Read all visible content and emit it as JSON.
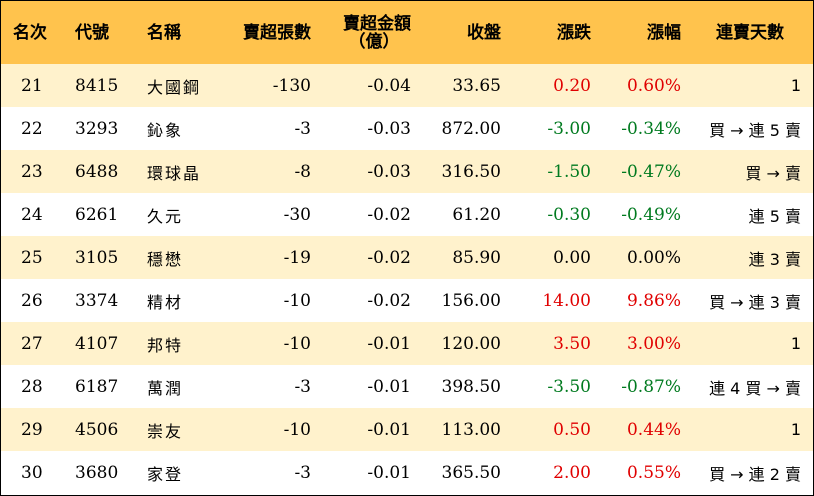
{
  "colors": {
    "header_bg": "#ffc34d",
    "alt_row_bg": "#fff2cc",
    "up": "#e00000",
    "down": "#007a1f"
  },
  "header": {
    "rank": "名次",
    "code": "代號",
    "name": "名稱",
    "net_sell_lots": "賣超張數",
    "net_sell_amount_1": "賣超金額",
    "net_sell_amount_2": "（億）",
    "close": "收盤",
    "change": "漲跌",
    "change_pct": "漲幅",
    "streak": "連賣天數"
  },
  "rows": [
    {
      "rank": "21",
      "code": "8415",
      "name": "大國鋼",
      "lots": "-130",
      "amount": "-0.04",
      "close": "33.65",
      "change": "0.20",
      "pct": "0.60%",
      "dir": "up",
      "streak": "1"
    },
    {
      "rank": "22",
      "code": "3293",
      "name": "鈊象",
      "lots": "-3",
      "amount": "-0.03",
      "close": "872.00",
      "change": "-3.00",
      "pct": "-0.34%",
      "dir": "down",
      "streak": "買 → 連 5 賣"
    },
    {
      "rank": "23",
      "code": "6488",
      "name": "環球晶",
      "lots": "-8",
      "amount": "-0.03",
      "close": "316.50",
      "change": "-1.50",
      "pct": "-0.47%",
      "dir": "down",
      "streak": "買 → 賣"
    },
    {
      "rank": "24",
      "code": "6261",
      "name": "久元",
      "lots": "-30",
      "amount": "-0.02",
      "close": "61.20",
      "change": "-0.30",
      "pct": "-0.49%",
      "dir": "down",
      "streak": "連 5 賣"
    },
    {
      "rank": "25",
      "code": "3105",
      "name": "穩懋",
      "lots": "-19",
      "amount": "-0.02",
      "close": "85.90",
      "change": "0.00",
      "pct": "0.00%",
      "dir": "flat",
      "streak": "連 3 賣"
    },
    {
      "rank": "26",
      "code": "3374",
      "name": "精材",
      "lots": "-10",
      "amount": "-0.02",
      "close": "156.00",
      "change": "14.00",
      "pct": "9.86%",
      "dir": "up",
      "streak": "買 → 連 3 賣"
    },
    {
      "rank": "27",
      "code": "4107",
      "name": "邦特",
      "lots": "-10",
      "amount": "-0.01",
      "close": "120.00",
      "change": "3.50",
      "pct": "3.00%",
      "dir": "up",
      "streak": "1"
    },
    {
      "rank": "28",
      "code": "6187",
      "name": "萬潤",
      "lots": "-3",
      "amount": "-0.01",
      "close": "398.50",
      "change": "-3.50",
      "pct": "-0.87%",
      "dir": "down",
      "streak": "連 4 買 → 賣"
    },
    {
      "rank": "29",
      "code": "4506",
      "name": "崇友",
      "lots": "-10",
      "amount": "-0.01",
      "close": "113.00",
      "change": "0.50",
      "pct": "0.44%",
      "dir": "up",
      "streak": "1"
    },
    {
      "rank": "30",
      "code": "3680",
      "name": "家登",
      "lots": "-3",
      "amount": "-0.01",
      "close": "365.50",
      "change": "2.00",
      "pct": "0.55%",
      "dir": "up",
      "streak": "買 → 連 2 賣"
    }
  ]
}
